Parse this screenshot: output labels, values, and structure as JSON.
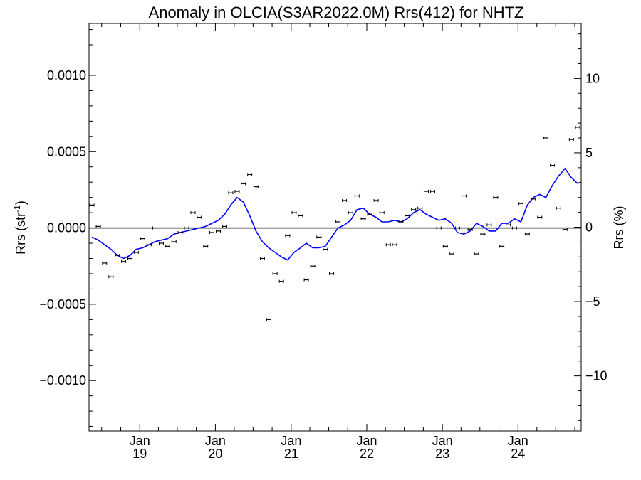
{
  "chart_data": {
    "type": "line",
    "title": "Anomaly in OLCIA(S3AR2022.0M) Rrs(412) for NHTZ",
    "ylabel_left_prefix": "Rrs (str",
    "ylabel_left_sup": "-1",
    "ylabel_left_suffix": ")",
    "ylabel_right": "Rrs (%)",
    "xlim": [
      "2018-05-01",
      "2024-11-01"
    ],
    "ylim": [
      -0.00133,
      0.00134
    ],
    "ylim_right": [
      -13.7,
      13.7
    ],
    "left_ticks": [
      {
        "value": 0.001,
        "label": "0.0010"
      },
      {
        "value": 0.0005,
        "label": "0.0005"
      },
      {
        "value": 0.0,
        "label": "0.0000"
      },
      {
        "value": -0.0005,
        "label": "−0.0005"
      },
      {
        "value": -0.001,
        "label": "−0.0010"
      }
    ],
    "right_ticks": [
      {
        "value": 10,
        "label": "10"
      },
      {
        "value": 5,
        "label": "5"
      },
      {
        "value": 0,
        "label": "0"
      },
      {
        "value": -5,
        "label": "−5"
      },
      {
        "value": -10,
        "label": "−10"
      }
    ],
    "x_ticks": [
      {
        "date": "2019-01-01",
        "month": "Jan",
        "year": "19"
      },
      {
        "date": "2020-01-01",
        "month": "Jan",
        "year": "20"
      },
      {
        "date": "2021-01-01",
        "month": "Jan",
        "year": "21"
      },
      {
        "date": "2022-01-01",
        "month": "Jan",
        "year": "22"
      },
      {
        "date": "2023-01-01",
        "month": "Jan",
        "year": "23"
      },
      {
        "date": "2024-01-01",
        "month": "Jan",
        "year": "24"
      }
    ],
    "zero_line": true,
    "series": [
      {
        "kind": "points_with_error",
        "color": "#000000",
        "points": [
          [
            "2018-05",
            0.00015
          ],
          [
            "2018-06",
            1e-05
          ],
          [
            "2018-07",
            -0.00023
          ],
          [
            "2018-08",
            -0.00032
          ],
          [
            "2018-09",
            -0.00018
          ],
          [
            "2018-10",
            -0.00022
          ],
          [
            "2018-11",
            -0.0002
          ],
          [
            "2018-12",
            -0.00016
          ],
          [
            "2019-01",
            -7e-05
          ],
          [
            "2019-02",
            -0.00011
          ],
          [
            "2019-03",
            0.0
          ],
          [
            "2019-04",
            -0.0001
          ],
          [
            "2019-05",
            -0.00012
          ],
          [
            "2019-06",
            -9e-05
          ],
          [
            "2019-07",
            -3e-05
          ],
          [
            "2019-08",
            0.0
          ],
          [
            "2019-09",
            0.0001
          ],
          [
            "2019-10",
            7e-05
          ],
          [
            "2019-11",
            -0.00012
          ],
          [
            "2019-12",
            -3e-05
          ],
          [
            "2020-01",
            -2e-05
          ],
          [
            "2020-02",
            1e-05
          ],
          [
            "2020-03",
            0.00023
          ],
          [
            "2020-04",
            0.00024
          ],
          [
            "2020-05",
            0.00029
          ],
          [
            "2020-06",
            0.00035
          ],
          [
            "2020-07",
            0.00027
          ],
          [
            "2020-08",
            -0.0002
          ],
          [
            "2020-09",
            -0.0006
          ],
          [
            "2020-10",
            -0.0003
          ],
          [
            "2020-11",
            -0.00035
          ],
          [
            "2020-12",
            -5e-05
          ],
          [
            "2021-01",
            0.0001
          ],
          [
            "2021-02",
            8e-05
          ],
          [
            "2021-03",
            -0.00034
          ],
          [
            "2021-04",
            -0.00025
          ],
          [
            "2021-05",
            -6e-05
          ],
          [
            "2021-06",
            -0.00014
          ],
          [
            "2021-07",
            -0.0003
          ],
          [
            "2021-08",
            4e-05
          ],
          [
            "2021-09",
            0.00018
          ],
          [
            "2021-10",
            0.0001
          ],
          [
            "2021-11",
            0.00021
          ],
          [
            "2021-12",
            6e-05
          ],
          [
            "2022-01",
            9e-05
          ],
          [
            "2022-02",
            0.00018
          ],
          [
            "2022-03",
            0.0001
          ],
          [
            "2022-04",
            -0.00011
          ],
          [
            "2022-05",
            -0.00011
          ],
          [
            "2022-06",
            4e-05
          ],
          [
            "2022-07",
            8e-05
          ],
          [
            "2022-08",
            0.00012
          ],
          [
            "2022-09",
            0.00013
          ],
          [
            "2022-10",
            0.00024
          ],
          [
            "2022-11",
            0.00024
          ],
          [
            "2022-12",
            0.0
          ],
          [
            "2023-01",
            -0.00012
          ],
          [
            "2023-02",
            -0.00017
          ],
          [
            "2023-03",
            0.0
          ],
          [
            "2023-04",
            0.00021
          ],
          [
            "2023-05",
            -1e-05
          ],
          [
            "2023-06",
            -0.00017
          ],
          [
            "2023-07",
            -4e-05
          ],
          [
            "2023-08",
            2e-05
          ],
          [
            "2023-09",
            0.0002
          ],
          [
            "2023-10",
            -0.00012
          ],
          [
            "2023-11",
            2e-05
          ],
          [
            "2023-12",
            0.0
          ],
          [
            "2024-01",
            0.00016
          ],
          [
            "2024-02",
            -4e-05
          ],
          [
            "2024-03",
            0.00019
          ],
          [
            "2024-04",
            7e-05
          ],
          [
            "2024-05",
            0.00059
          ],
          [
            "2024-06",
            0.00041
          ],
          [
            "2024-07",
            0.00013
          ],
          [
            "2024-08",
            -1e-05
          ],
          [
            "2024-09",
            0.00058
          ],
          [
            "2024-10",
            0.00066
          ]
        ]
      },
      {
        "kind": "line",
        "color": "#0000ff",
        "points": [
          [
            "2018-05",
            -6e-05
          ],
          [
            "2018-06",
            -8e-05
          ],
          [
            "2018-07",
            -0.00011
          ],
          [
            "2018-08",
            -0.00014
          ],
          [
            "2018-09",
            -0.00018
          ],
          [
            "2018-10",
            -0.0002
          ],
          [
            "2018-11",
            -0.00018
          ],
          [
            "2018-12",
            -0.00014
          ],
          [
            "2019-01",
            -0.00013
          ],
          [
            "2019-02",
            -0.00011
          ],
          [
            "2019-03",
            -9e-05
          ],
          [
            "2019-04",
            -8e-05
          ],
          [
            "2019-05",
            -7e-05
          ],
          [
            "2019-06",
            -4e-05
          ],
          [
            "2019-07",
            -3e-05
          ],
          [
            "2019-08",
            -2e-05
          ],
          [
            "2019-09",
            -1e-05
          ],
          [
            "2019-10",
            0.0
          ],
          [
            "2019-11",
            1e-05
          ],
          [
            "2019-12",
            3e-05
          ],
          [
            "2020-01",
            5e-05
          ],
          [
            "2020-02",
            9e-05
          ],
          [
            "2020-03",
            0.00015
          ],
          [
            "2020-04",
            0.0002
          ],
          [
            "2020-05",
            0.00017
          ],
          [
            "2020-06",
            8e-05
          ],
          [
            "2020-07",
            -2e-05
          ],
          [
            "2020-08",
            -9e-05
          ],
          [
            "2020-09",
            -0.00013
          ],
          [
            "2020-10",
            -0.00016
          ],
          [
            "2020-11",
            -0.00019
          ],
          [
            "2020-12",
            -0.00021
          ],
          [
            "2021-01",
            -0.00016
          ],
          [
            "2021-02",
            -0.00013
          ],
          [
            "2021-03",
            -0.0001
          ],
          [
            "2021-04",
            -0.00013
          ],
          [
            "2021-05",
            -0.00013
          ],
          [
            "2021-06",
            -0.00012
          ],
          [
            "2021-07",
            -6e-05
          ],
          [
            "2021-08",
            0.0
          ],
          [
            "2021-09",
            2e-05
          ],
          [
            "2021-10",
            5e-05
          ],
          [
            "2021-11",
            0.00012
          ],
          [
            "2021-12",
            0.00013
          ],
          [
            "2022-01",
            9e-05
          ],
          [
            "2022-02",
            7e-05
          ],
          [
            "2022-03",
            4e-05
          ],
          [
            "2022-04",
            4e-05
          ],
          [
            "2022-05",
            5e-05
          ],
          [
            "2022-06",
            4e-05
          ],
          [
            "2022-07",
            6e-05
          ],
          [
            "2022-08",
            0.0001
          ],
          [
            "2022-09",
            0.00012
          ],
          [
            "2022-10",
            9e-05
          ],
          [
            "2022-11",
            7e-05
          ],
          [
            "2022-12",
            5e-05
          ],
          [
            "2023-01",
            6e-05
          ],
          [
            "2023-02",
            3e-05
          ],
          [
            "2023-03",
            -3e-05
          ],
          [
            "2023-04",
            -4e-05
          ],
          [
            "2023-05",
            -2e-05
          ],
          [
            "2023-06",
            3e-05
          ],
          [
            "2023-07",
            1e-05
          ],
          [
            "2023-08",
            -2e-05
          ],
          [
            "2023-09",
            -2e-05
          ],
          [
            "2023-10",
            3e-05
          ],
          [
            "2023-11",
            3e-05
          ],
          [
            "2023-12",
            6e-05
          ],
          [
            "2024-01",
            4e-05
          ],
          [
            "2024-02",
            0.00015
          ],
          [
            "2024-03",
            0.0002
          ],
          [
            "2024-04",
            0.00022
          ],
          [
            "2024-05",
            0.0002
          ],
          [
            "2024-06",
            0.00028
          ],
          [
            "2024-07",
            0.00034
          ],
          [
            "2024-08",
            0.00039
          ],
          [
            "2024-09",
            0.00033
          ],
          [
            "2024-10",
            0.00029
          ]
        ]
      }
    ]
  }
}
